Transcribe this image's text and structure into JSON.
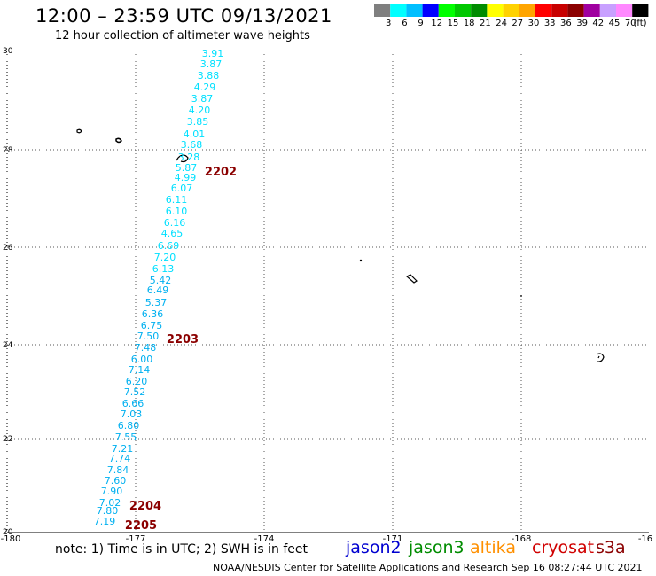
{
  "header": {
    "title": "12:00 – 23:59 UTC 09/13/2021",
    "subtitle": "12 hour collection of altimeter wave heights"
  },
  "color_scale": {
    "unit": "(ft)",
    "colors": [
      "#7f7f7f",
      "#00ffff",
      "#00bfff",
      "#0000ff",
      "#00ff00",
      "#00c800",
      "#008c00",
      "#ffff00",
      "#ffd200",
      "#ffa500",
      "#ff0000",
      "#c80000",
      "#8b0000",
      "#a000a0",
      "#c8a0ff",
      "#ff88ff",
      "#000000"
    ],
    "labels": [
      "3",
      "6",
      "9",
      "12",
      "15",
      "18",
      "21",
      "24",
      "27",
      "30",
      "33",
      "36",
      "39",
      "42",
      "45",
      "70"
    ]
  },
  "axes": {
    "x_ticks": [
      "-180",
      "-177",
      "-174",
      "-171",
      "-168",
      "-16"
    ],
    "y_ticks": [
      "30",
      "28",
      "26",
      "24",
      "22",
      "20"
    ]
  },
  "wave_heights": {
    "values": [
      "3.91",
      "3.87",
      "3.88",
      "4.29",
      "3.87",
      "4.20",
      "3.85",
      "4.01",
      "3.68",
      "3.28",
      "5.87",
      "4.99",
      "6.07",
      "6.11",
      "6.10",
      "6.16",
      "4.65",
      "6.69",
      "7.20",
      "6.13",
      "5.42",
      "6.49",
      "5.37",
      "6.36",
      "6.75",
      "7.50",
      "7.48",
      "6.00",
      "7.14",
      "6.20",
      "7.52",
      "6.66",
      "7.03",
      "6.80",
      "7.55",
      "7.21",
      "7.74",
      "7.84",
      "7.60",
      "7.90",
      "7.02",
      "7.80",
      "7.19"
    ]
  },
  "time_labels": [
    "2202",
    "2203",
    "2204",
    "2205"
  ],
  "colors": {
    "time_label": "#8b0000",
    "cyan": "#00e0ff",
    "light_blue": "#00b0f0",
    "grid": "#555555"
  },
  "footer": {
    "note": "note: 1) Time is in UTC; 2) SWH is in feet",
    "satellites": [
      {
        "name": "jason2",
        "color": "#0000d0"
      },
      {
        "name": "jason3",
        "color": "#008c00"
      },
      {
        "name": "altika",
        "color": "#ff9000"
      },
      {
        "name": "cryosat",
        "color": "#d00000"
      },
      {
        "name": "s3a",
        "color": "#8b0000"
      }
    ],
    "credit": "NOAA/NESDIS Center for Satellite Applications and Research    Sep 16 08:27:44 UTC 2021"
  }
}
